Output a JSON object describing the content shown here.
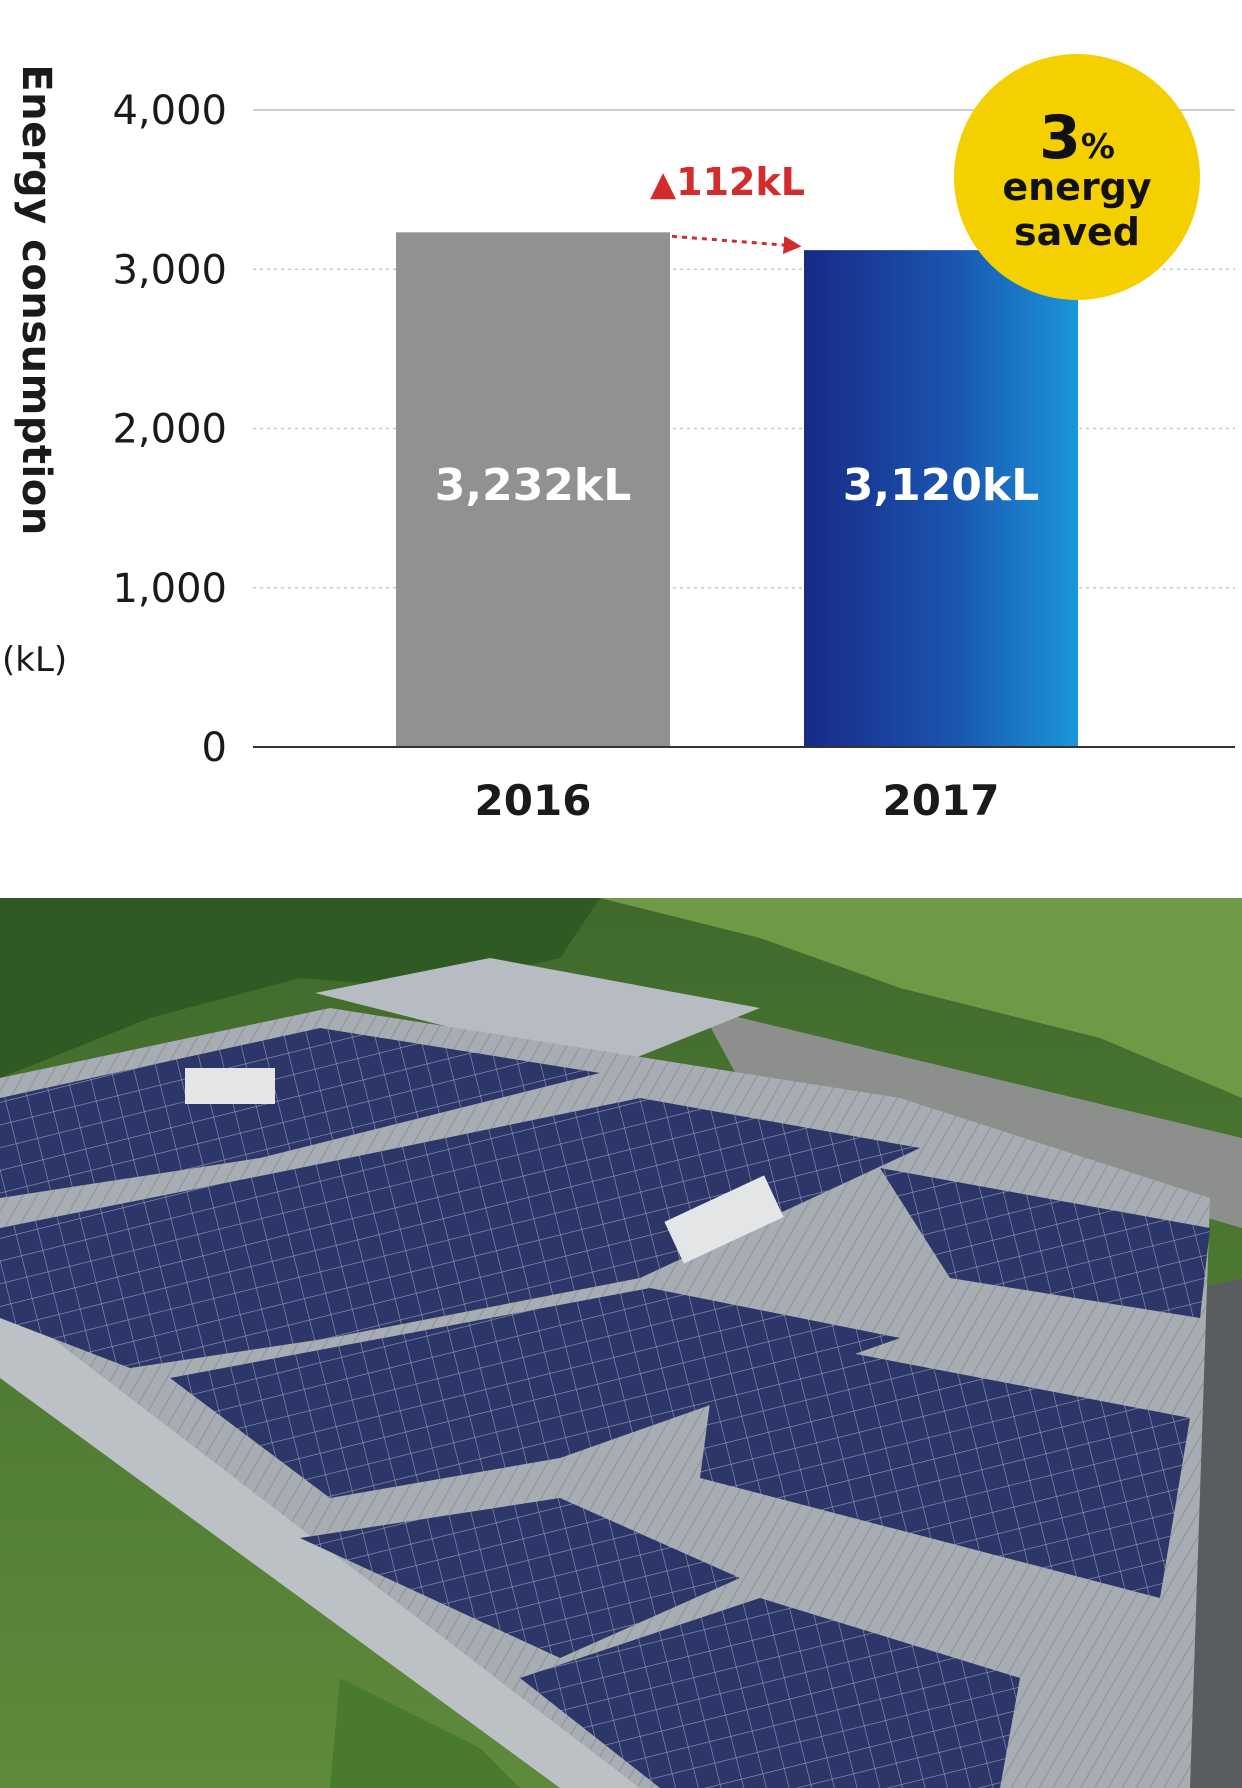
{
  "chart_data": {
    "type": "bar",
    "ylabel": "Energy consumption",
    "yunit": "(kL)",
    "categories": [
      "2016",
      "2017"
    ],
    "values": [
      3232,
      3120
    ],
    "value_labels": [
      "3,232kL",
      "3,120kL"
    ],
    "ylim": [
      0,
      4000
    ],
    "yticks": [
      0,
      1000,
      2000,
      3000,
      4000
    ],
    "ytick_labels": [
      "0",
      "1,000",
      "2,000",
      "3,000",
      "4,000"
    ],
    "grid": "horizontal-dotted",
    "bar_colors": [
      "#919191",
      "#1b3f96"
    ],
    "annotation": {
      "text": "112kL",
      "symbol": "▲",
      "color": "#d22c2c"
    },
    "badge": {
      "number": "3",
      "unit": "%",
      "line1": "energy",
      "line2": "saved",
      "color": "#f5d000"
    }
  },
  "photo": {
    "description_icon": "solar-roof-photo"
  }
}
